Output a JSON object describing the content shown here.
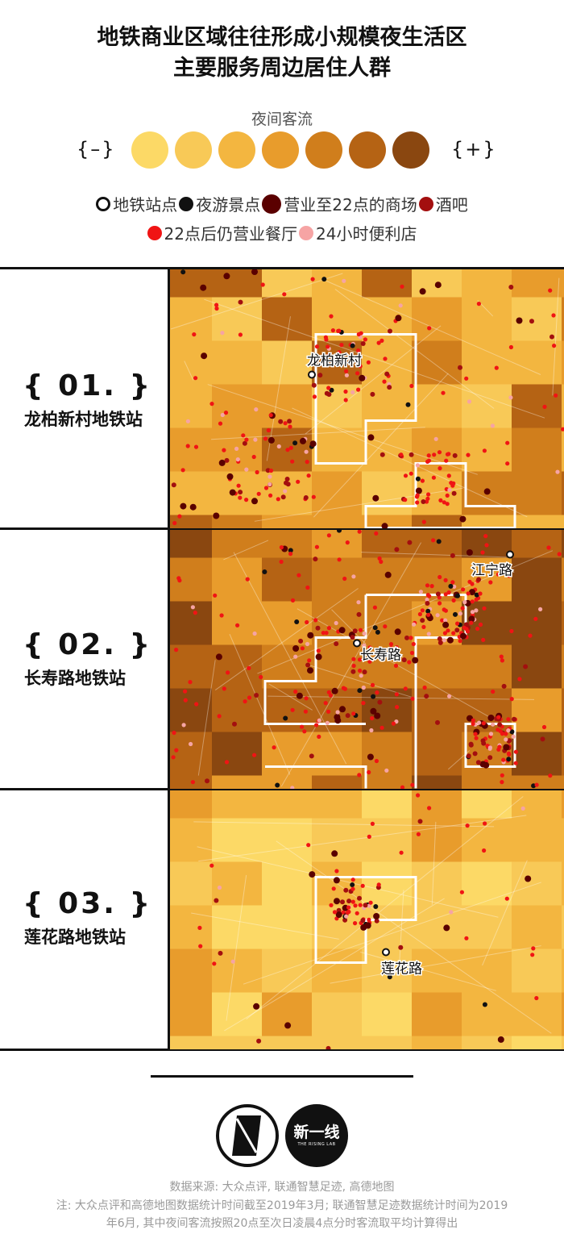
{
  "title": {
    "line1": "地铁商业区域往往形成小规模夜生活区",
    "line2": "主要服务周边居住人群"
  },
  "legend": {
    "scale_title": "夜间客流",
    "low_label": "{–}",
    "high_label": "{+}",
    "scale_colors": [
      "#fcd966",
      "#f8c957",
      "#f3b640",
      "#e89c2c",
      "#d07e1c",
      "#b56314",
      "#8a4710"
    ],
    "items_row1": [
      {
        "label": "地铁站点",
        "kind": "ring",
        "color": "#111111"
      },
      {
        "label": "夜游景点",
        "kind": "dot",
        "color": "#111111"
      },
      {
        "label": "营业至22点的商场",
        "kind": "bigdot",
        "color": "#5a0000"
      },
      {
        "label": "酒吧",
        "kind": "dot",
        "color": "#a30f0f"
      }
    ],
    "items_row2": [
      {
        "label": "22点后仍营业餐厅",
        "kind": "dot",
        "color": "#f01414"
      },
      {
        "label": "24小时便利店",
        "kind": "dot",
        "color": "#f6a4a4"
      }
    ]
  },
  "panels": [
    {
      "number": "{ 01. }",
      "name": "龙柏新村地铁站",
      "station": "龙柏新村",
      "palette": "mid"
    },
    {
      "number": "{ 02. }",
      "name": "长寿路地铁站",
      "station": "长寿路",
      "station2": "江宁路",
      "palette": "dark"
    },
    {
      "number": "{ 03. }",
      "name": "莲花路地铁站",
      "station": "莲花路",
      "palette": "light"
    }
  ],
  "logos": {
    "logo2_text": "新一线",
    "logo2_sub": "THE RISING LAB"
  },
  "footer": {
    "source": "数据来源: 大众点评, 联通智慧足迹, 高德地图",
    "note1": "注: 大众点评和高德地图数据统计时间截至2019年3月; 联通智慧足迹数据统计时间为2019",
    "note2": "年6月, 其中夜间客流按照20点至次日凌晨4点分时客流取平均计算得出"
  }
}
